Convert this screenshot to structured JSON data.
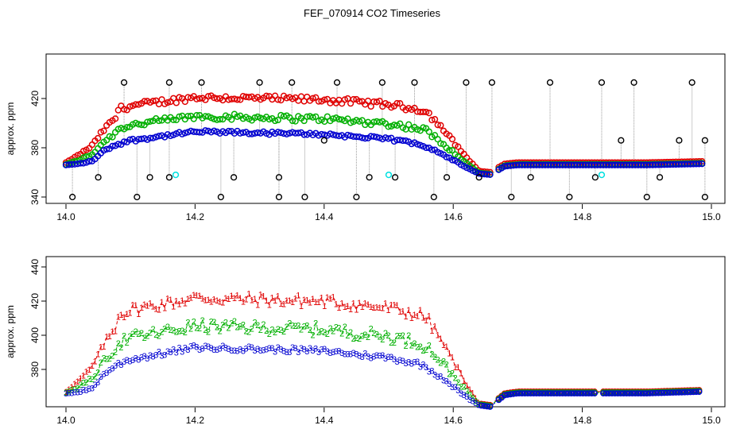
{
  "title": "FEF_070914  CO2 Timeseries",
  "chart_data": [
    {
      "type": "scatter",
      "panel": "top",
      "ylabel": "approx. ppm",
      "xlim": [
        14.0,
        15.0
      ],
      "ylim": [
        338,
        438
      ],
      "x_ticks": [
        "14.0",
        "14.2",
        "14.4",
        "14.6",
        "14.8",
        "15.0"
      ],
      "y_ticks": [
        "340",
        "380",
        "420"
      ],
      "colors": {
        "red": "#e00000",
        "green": "#00b000",
        "blue": "#0000d0",
        "black": "#000000",
        "cyan": "#00e0e0",
        "drop_line": "#999999"
      },
      "series_shape": "profile",
      "profile_x": [
        14.0,
        14.02,
        14.04,
        14.06,
        14.08,
        14.1,
        14.2,
        14.3,
        14.4,
        14.5,
        14.55,
        14.58,
        14.6,
        14.62,
        14.64,
        14.66,
        14.67,
        14.68,
        14.7,
        14.8,
        14.9,
        14.99
      ],
      "profile_y": [
        366,
        367,
        369,
        378,
        383,
        386,
        393,
        392,
        391,
        387,
        383,
        376,
        370,
        364,
        359,
        358,
        362,
        365,
        366,
        366,
        366,
        367
      ],
      "series_offsets": {
        "red": [
          2,
          26
        ],
        "green": [
          0.5,
          12
        ],
        "blue": [
          0,
          0
        ]
      },
      "outlier_x": [
        14.01,
        14.05,
        14.09,
        14.11,
        14.13,
        14.16,
        14.16,
        14.21,
        14.24,
        14.26,
        14.3,
        14.33,
        14.33,
        14.35,
        14.37,
        14.4,
        14.42,
        14.45,
        14.47,
        14.49,
        14.51,
        14.54,
        14.57,
        14.59,
        14.62,
        14.64,
        14.66,
        14.69,
        14.72,
        14.75,
        14.78,
        14.82,
        14.83,
        14.86,
        14.88,
        14.9,
        14.92,
        14.95,
        14.97,
        14.99,
        14.99
      ],
      "outlier_y": [
        340,
        356,
        433,
        340,
        356,
        433,
        356,
        433,
        340,
        356,
        433,
        356,
        340,
        433,
        340,
        386,
        433,
        340,
        356,
        433,
        356,
        433,
        340,
        356,
        433,
        356,
        433,
        340,
        356,
        433,
        340,
        356,
        433,
        386,
        433,
        340,
        356,
        386,
        433,
        386,
        340
      ],
      "cyan_x": [
        14.17,
        14.5,
        14.83
      ],
      "cyan_y": [
        358,
        358,
        358
      ]
    },
    {
      "type": "line",
      "panel": "bottom",
      "ylabel": "approx. ppm",
      "xlim": [
        14.0,
        15.0
      ],
      "ylim": [
        362,
        446
      ],
      "x_ticks": [
        "14.0",
        "14.2",
        "14.4",
        "14.6",
        "14.8",
        "15.0"
      ],
      "y_ticks": [
        "380",
        "400",
        "420",
        "440"
      ],
      "series": [
        {
          "marker": "1",
          "color": "#e00000"
        },
        {
          "marker": "2",
          "color": "#00b000"
        },
        {
          "marker": "3",
          "color": "#0000d0"
        }
      ]
    }
  ]
}
